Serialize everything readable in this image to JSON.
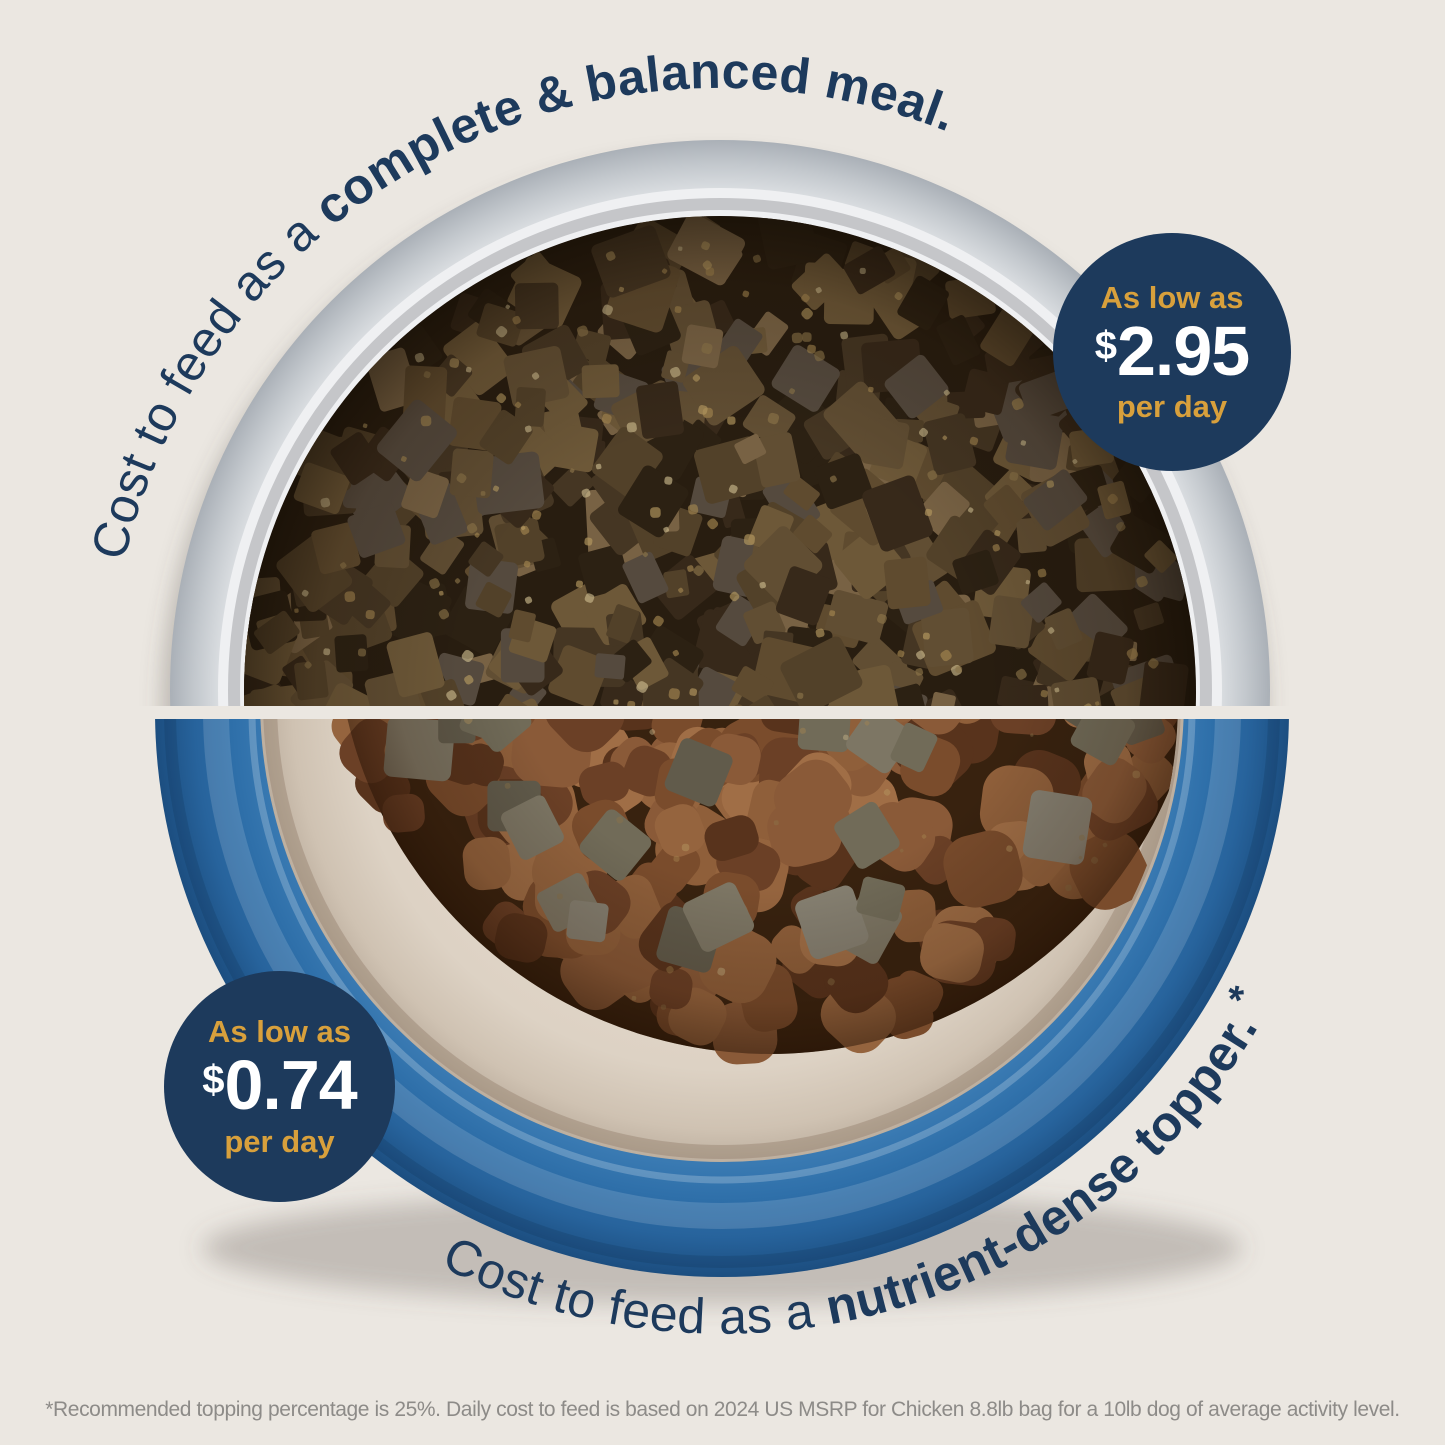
{
  "top_section": {
    "arc_text": {
      "regular": "Cost to feed as a ",
      "bold": "complete & balanced meal."
    },
    "badge": {
      "line1": "As low as",
      "currency": "$",
      "amount": "2.95",
      "per_day": "per day"
    }
  },
  "bottom_section": {
    "arc_text": {
      "regular": "Cost to feed as a ",
      "bold": "nutrient-dense topper.",
      "footnote_marker": "*"
    },
    "badge": {
      "line1": "As low as",
      "currency": "$",
      "amount": "0.74",
      "per_day": "per day"
    }
  },
  "footnote": "*Recommended topping percentage is 25%. Daily cost to feed is based on 2024 US MSRP for Chicken 8.8lb bag for a 10lb dog of average activity level.",
  "colors": {
    "background": "#EBE7E1",
    "navy": "#1D3A5C",
    "gold": "#D8A03C",
    "price_white": "#FFFFFF",
    "footnote_gray": "#8D8B88",
    "gray_bowl_rim": "#C9CDD2",
    "gray_bowl_inner": "#EFF0F2",
    "blue_bowl": "#2E6EA9",
    "blue_bowl_dark": "#1A4A7C",
    "cream_bowl": "#DDD2C4",
    "food_base_dark": "#281D10",
    "kibble_base_dark": "#38220F",
    "freeze_dried_palette": [
      "#453623",
      "#37291a",
      "#524129",
      "#5f4b2f",
      "#6d5838",
      "#2c2113",
      "#786244",
      "#554a3e",
      "#614e33"
    ],
    "freeze_dried_speckles": [
      "#a38650",
      "#b59a61",
      "#8c744a",
      "#c9b98c"
    ],
    "kibble_palette": [
      "#8a5a38",
      "#7a4c2c",
      "#95643e",
      "#6b4026",
      "#a06e46",
      "#58331c",
      "#8f5f3a"
    ],
    "topper_palette": [
      "#716b58",
      "#7d7664",
      "#615b4b",
      "#868071"
    ]
  }
}
